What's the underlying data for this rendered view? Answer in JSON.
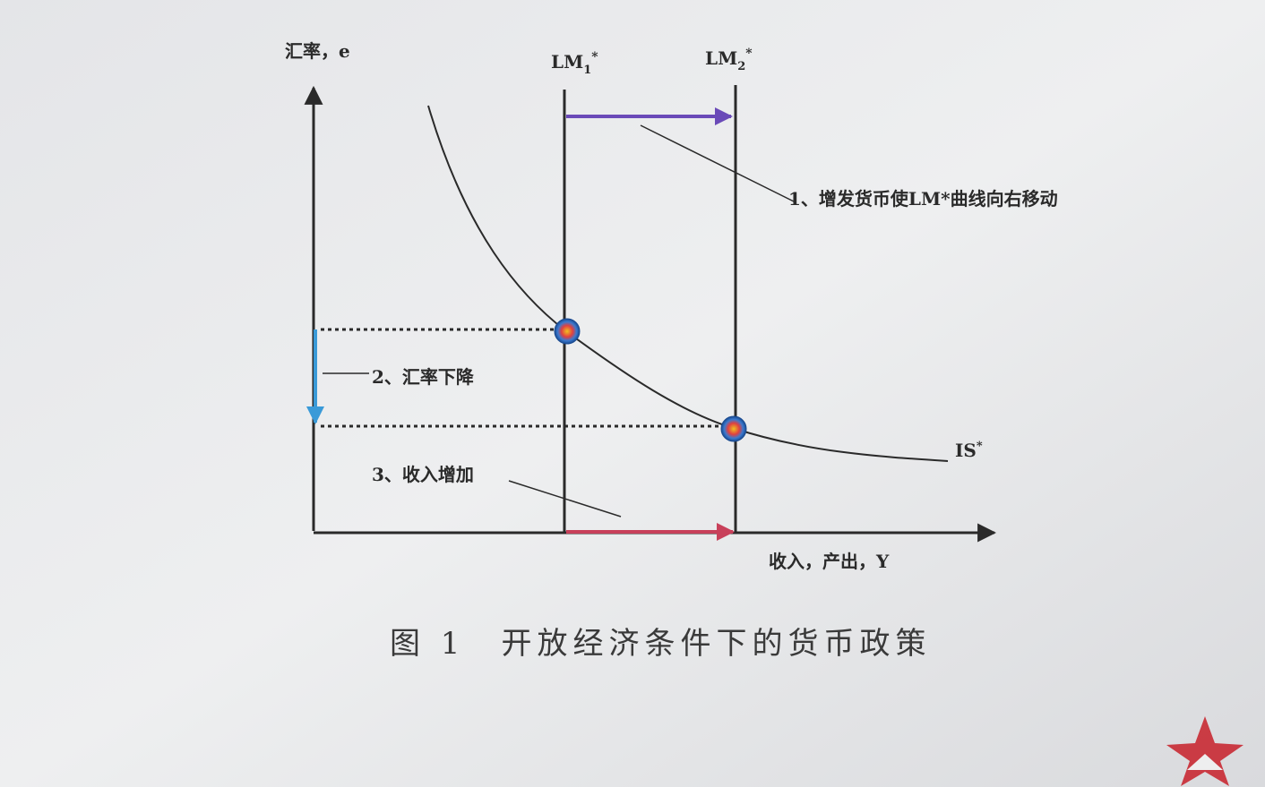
{
  "axes": {
    "y_label": "汇率，e",
    "x_label": "收入，产出，Y"
  },
  "curves": {
    "lm1": {
      "base": "LM",
      "sub": "1",
      "sup": "*"
    },
    "lm2": {
      "base": "LM",
      "sub": "2",
      "sup": "*"
    },
    "is": {
      "base": "IS",
      "sup": "*"
    }
  },
  "annotations": [
    "1、增发货币使LM*曲线向右移动",
    "2、汇率下降",
    "3、收入增加"
  ],
  "caption": "图 1　开放经济条件下的货币政策"
}
